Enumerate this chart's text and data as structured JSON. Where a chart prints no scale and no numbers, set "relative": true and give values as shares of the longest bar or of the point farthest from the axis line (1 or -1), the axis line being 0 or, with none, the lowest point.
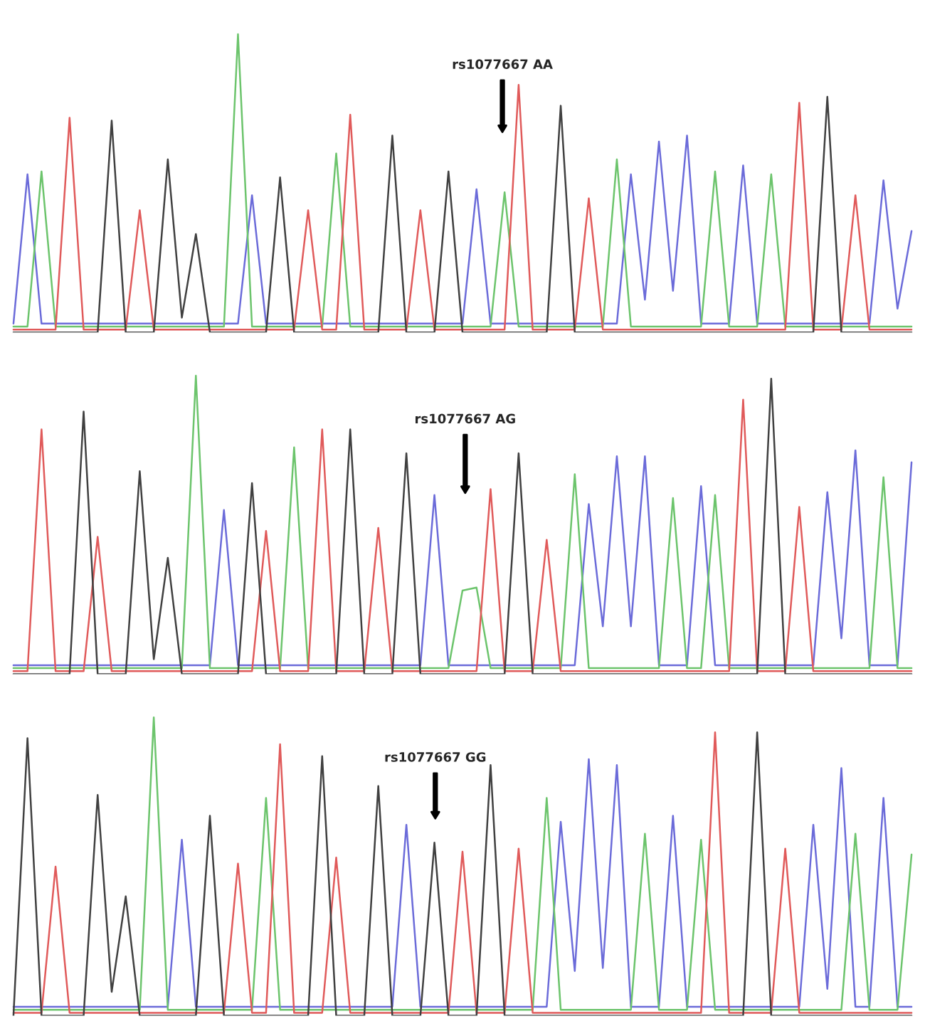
{
  "chart_data": [
    {
      "type": "line",
      "relative": true,
      "line_style": "solid",
      "categories": [
        null,
        null,
        null,
        null,
        null,
        null,
        null,
        null,
        null,
        null,
        null,
        null,
        null,
        null,
        null,
        null,
        null,
        null,
        null,
        null,
        null,
        null,
        null,
        null,
        null,
        null,
        null,
        null,
        null,
        null,
        null,
        null,
        null,
        null,
        null,
        null,
        null,
        null,
        null,
        null,
        null,
        null,
        null,
        null,
        null,
        null,
        null,
        null,
        null,
        null,
        null,
        null,
        null,
        null,
        null,
        null,
        null,
        null,
        null,
        null,
        null,
        null,
        null,
        null,
        null
      ],
      "annotations": [
        "rs1077667 AA"
      ],
      "series": [
        {
          "color": "#6b6bd9",
          "values": [
            0.03,
            0.53,
            0.03,
            0.03,
            0.03,
            0.03,
            0.03,
            0.03,
            0.03,
            0.03,
            0.03,
            0.03,
            0.03,
            0.03,
            0.03,
            0.03,
            0.03,
            0.46,
            0.03,
            0.03,
            0.03,
            0.03,
            0.03,
            0.03,
            0.03,
            0.03,
            0.03,
            0.03,
            0.03,
            0.03,
            0.03,
            0.03,
            0.03,
            0.48,
            0.03,
            0.03,
            0.03,
            0.03,
            0.03,
            0.03,
            0.03,
            0.03,
            0.03,
            0.03,
            0.53,
            0.11,
            0.64,
            0.14,
            0.66,
            0.03,
            0.03,
            0.03,
            0.56,
            0.03,
            0.03,
            0.03,
            0.03,
            0.03,
            0.03,
            0.03,
            0.03,
            0.03,
            0.51,
            0.08,
            0.34
          ]
        },
        {
          "color": "#6cc46c",
          "values": [
            0.02,
            0.02,
            0.54,
            0.02,
            0.02,
            0.02,
            0.02,
            0.02,
            0.02,
            0.02,
            0.02,
            0.02,
            0.02,
            0.02,
            0.02,
            0.02,
            1.0,
            0.02,
            0.02,
            0.02,
            0.02,
            0.02,
            0.02,
            0.6,
            0.02,
            0.02,
            0.02,
            0.02,
            0.02,
            0.02,
            0.02,
            0.02,
            0.02,
            0.02,
            0.02,
            0.47,
            0.02,
            0.02,
            0.02,
            0.02,
            0.02,
            0.02,
            0.02,
            0.58,
            0.02,
            0.02,
            0.02,
            0.02,
            0.02,
            0.02,
            0.54,
            0.02,
            0.02,
            0.02,
            0.53,
            0.02,
            0.02,
            0.02,
            0.02,
            0.02,
            0.02,
            0.02,
            0.02,
            0.02,
            0.02
          ]
        },
        {
          "color": "#e05a5a",
          "values": [
            0.01,
            0.01,
            0.01,
            0.01,
            0.72,
            0.01,
            0.01,
            0.01,
            0.01,
            0.41,
            0.01,
            0.01,
            0.01,
            0.01,
            0.01,
            0.01,
            0.01,
            0.01,
            0.01,
            0.01,
            0.01,
            0.41,
            0.01,
            0.01,
            0.73,
            0.01,
            0.01,
            0.01,
            0.01,
            0.41,
            0.01,
            0.01,
            0.01,
            0.01,
            0.01,
            0.01,
            0.83,
            0.01,
            0.01,
            0.01,
            0.01,
            0.45,
            0.01,
            0.01,
            0.01,
            0.01,
            0.01,
            0.01,
            0.01,
            0.01,
            0.01,
            0.01,
            0.01,
            0.01,
            0.01,
            0.01,
            0.77,
            0.01,
            0.01,
            0.01,
            0.46,
            0.01,
            0.01,
            0.01,
            0.01
          ]
        },
        {
          "color": "#404040",
          "values": [
            0,
            0,
            0,
            0,
            0,
            0,
            0,
            0.71,
            0,
            0,
            0,
            0.58,
            0.05,
            0.33,
            0,
            0,
            0,
            0,
            0,
            0.52,
            0,
            0,
            0,
            0,
            0,
            0,
            0,
            0.66,
            0,
            0,
            0,
            0.54,
            0,
            0,
            0,
            0,
            0,
            0,
            0,
            0.76,
            0,
            0,
            0,
            0,
            0,
            0,
            0,
            0,
            0,
            0,
            0,
            0,
            0,
            0,
            0,
            0,
            0,
            0,
            0.79,
            0,
            0,
            0,
            0,
            0,
            0
          ]
        }
      ]
    },
    {
      "type": "line",
      "relative": true,
      "line_style": "solid",
      "categories": [
        null,
        null,
        null,
        null,
        null,
        null,
        null,
        null,
        null,
        null,
        null,
        null,
        null,
        null,
        null,
        null,
        null,
        null,
        null,
        null,
        null,
        null,
        null,
        null,
        null,
        null,
        null,
        null,
        null,
        null,
        null,
        null,
        null,
        null,
        null,
        null,
        null,
        null,
        null,
        null,
        null,
        null,
        null,
        null,
        null,
        null,
        null,
        null,
        null,
        null,
        null,
        null,
        null,
        null,
        null,
        null,
        null,
        null,
        null,
        null,
        null,
        null,
        null,
        null,
        null
      ],
      "annotations": [
        "rs1077667 AG"
      ],
      "series": [
        {
          "color": "#6b6bd9",
          "values": [
            0.03,
            0.03,
            0.03,
            0.03,
            0.03,
            0.03,
            0.03,
            0.03,
            0.03,
            0.03,
            0.03,
            0.03,
            0.03,
            0.03,
            0.03,
            0.55,
            0.03,
            0.03,
            0.03,
            0.03,
            0.03,
            0.03,
            0.03,
            0.03,
            0.03,
            0.03,
            0.03,
            0.03,
            0.03,
            0.03,
            0.6,
            0.03,
            0.03,
            0.03,
            0.03,
            0.03,
            0.03,
            0.03,
            0.03,
            0.03,
            0.03,
            0.57,
            0.16,
            0.73,
            0.16,
            0.73,
            0.03,
            0.03,
            0.03,
            0.63,
            0.03,
            0.03,
            0.03,
            0.03,
            0.03,
            0.03,
            0.03,
            0.03,
            0.61,
            0.12,
            0.75,
            0.03,
            0.03,
            0.03,
            0.71
          ]
        },
        {
          "color": "#6cc46c",
          "values": [
            0.02,
            0.02,
            0.02,
            0.02,
            0.02,
            0.02,
            0.02,
            0.02,
            0.02,
            0.02,
            0.02,
            0.02,
            0.02,
            1.0,
            0.02,
            0.02,
            0.02,
            0.02,
            0.02,
            0.02,
            0.76,
            0.02,
            0.02,
            0.02,
            0.02,
            0.02,
            0.02,
            0.02,
            0.02,
            0.02,
            0.02,
            0.02,
            0.28,
            0.29,
            0.02,
            0.02,
            0.02,
            0.02,
            0.02,
            0.02,
            0.67,
            0.02,
            0.02,
            0.02,
            0.02,
            0.02,
            0.02,
            0.59,
            0.02,
            0.02,
            0.6,
            0.02,
            0.02,
            0.02,
            0.02,
            0.02,
            0.02,
            0.02,
            0.02,
            0.02,
            0.02,
            0.02,
            0.66,
            0.02,
            0.02
          ]
        },
        {
          "color": "#e05a5a",
          "values": [
            0.01,
            0.01,
            0.82,
            0.01,
            0.01,
            0.01,
            0.46,
            0.01,
            0.01,
            0.01,
            0.01,
            0.01,
            0.01,
            0.01,
            0.01,
            0.01,
            0.01,
            0.01,
            0.48,
            0.01,
            0.01,
            0.01,
            0.82,
            0.01,
            0.01,
            0.01,
            0.49,
            0.01,
            0.01,
            0.01,
            0.01,
            0.01,
            0.01,
            0.01,
            0.62,
            0.01,
            0.01,
            0.01,
            0.45,
            0.01,
            0.01,
            0.01,
            0.01,
            0.01,
            0.01,
            0.01,
            0.01,
            0.01,
            0.01,
            0.01,
            0.01,
            0.01,
            0.92,
            0.01,
            0.01,
            0.01,
            0.56,
            0.01,
            0.01,
            0.01,
            0.01,
            0.01,
            0.01,
            0.01,
            0.01
          ]
        },
        {
          "color": "#404040",
          "values": [
            0,
            0,
            0,
            0,
            0,
            0.88,
            0,
            0,
            0,
            0.68,
            0.05,
            0.39,
            0,
            0,
            0,
            0,
            0,
            0.64,
            0,
            0,
            0,
            0,
            0,
            0,
            0.82,
            0,
            0,
            0,
            0.74,
            0,
            0,
            0,
            0,
            0,
            0,
            0,
            0.74,
            0,
            0,
            0,
            0,
            0,
            0,
            0,
            0,
            0,
            0,
            0,
            0,
            0,
            0,
            0,
            0,
            0,
            0.99,
            0,
            0,
            0,
            0,
            0,
            0,
            0,
            0,
            0,
            0
          ]
        }
      ]
    },
    {
      "type": "line",
      "relative": true,
      "line_style": "solid",
      "categories": [
        null,
        null,
        null,
        null,
        null,
        null,
        null,
        null,
        null,
        null,
        null,
        null,
        null,
        null,
        null,
        null,
        null,
        null,
        null,
        null,
        null,
        null,
        null,
        null,
        null,
        null,
        null,
        null,
        null,
        null,
        null,
        null,
        null,
        null,
        null,
        null,
        null,
        null,
        null,
        null,
        null,
        null,
        null,
        null,
        null,
        null,
        null,
        null,
        null,
        null,
        null,
        null,
        null,
        null,
        null,
        null,
        null,
        null,
        null,
        null,
        null,
        null,
        null,
        null,
        null
      ],
      "annotations": [
        "rs1077667 GG"
      ],
      "series": [
        {
          "color": "#6b6bd9",
          "values": [
            0.03,
            0.03,
            0.03,
            0.03,
            0.03,
            0.03,
            0.03,
            0.03,
            0.03,
            0.03,
            0.03,
            0.03,
            0.59,
            0.03,
            0.03,
            0.03,
            0.03,
            0.03,
            0.03,
            0.03,
            0.03,
            0.03,
            0.03,
            0.03,
            0.03,
            0.03,
            0.03,
            0.03,
            0.64,
            0.03,
            0.03,
            0.03,
            0.03,
            0.03,
            0.03,
            0.03,
            0.03,
            0.03,
            0.03,
            0.65,
            0.15,
            0.86,
            0.16,
            0.84,
            0.03,
            0.03,
            0.03,
            0.67,
            0.03,
            0.03,
            0.03,
            0.03,
            0.03,
            0.03,
            0.03,
            0.03,
            0.03,
            0.64,
            0.09,
            0.83,
            0.03,
            0.03,
            0.73,
            0.03,
            0.03
          ]
        },
        {
          "color": "#6cc46c",
          "values": [
            0.02,
            0.02,
            0.02,
            0.02,
            0.02,
            0.02,
            0.02,
            0.02,
            0.02,
            0.02,
            1.0,
            0.02,
            0.02,
            0.02,
            0.02,
            0.02,
            0.02,
            0.02,
            0.73,
            0.02,
            0.02,
            0.02,
            0.02,
            0.02,
            0.02,
            0.02,
            0.02,
            0.02,
            0.02,
            0.02,
            0.02,
            0.02,
            0.02,
            0.02,
            0.02,
            0.02,
            0.02,
            0.02,
            0.73,
            0.02,
            0.02,
            0.02,
            0.02,
            0.02,
            0.02,
            0.61,
            0.02,
            0.02,
            0.02,
            0.59,
            0.02,
            0.02,
            0.02,
            0.02,
            0.02,
            0.02,
            0.02,
            0.02,
            0.02,
            0.02,
            0.61,
            0.02,
            0.02,
            0.02,
            0.54
          ]
        },
        {
          "color": "#e05a5a",
          "values": [
            0.01,
            0.01,
            0.01,
            0.5,
            0.01,
            0.01,
            0.01,
            0.01,
            0.01,
            0.01,
            0.01,
            0.01,
            0.01,
            0.01,
            0.01,
            0.01,
            0.51,
            0.01,
            0.01,
            0.91,
            0.01,
            0.01,
            0.01,
            0.53,
            0.01,
            0.01,
            0.01,
            0.01,
            0.01,
            0.01,
            0.01,
            0.01,
            0.55,
            0.01,
            0.01,
            0.01,
            0.56,
            0.01,
            0.01,
            0.01,
            0.01,
            0.01,
            0.01,
            0.01,
            0.01,
            0.01,
            0.01,
            0.01,
            0.01,
            0.01,
            0.95,
            0.01,
            0.01,
            0.01,
            0.01,
            0.56,
            0.01,
            0.01,
            0.01,
            0.01,
            0.01,
            0.01,
            0.01,
            0.01,
            0.01
          ]
        },
        {
          "color": "#404040",
          "values": [
            0,
            0.93,
            0,
            0,
            0,
            0,
            0.74,
            0.08,
            0.4,
            0,
            0,
            0,
            0,
            0,
            0.67,
            0,
            0,
            0,
            0,
            0,
            0,
            0,
            0.87,
            0,
            0,
            0,
            0.77,
            0,
            0,
            0,
            0.58,
            0,
            0,
            0,
            0.84,
            0,
            0,
            0,
            0,
            0,
            0,
            0,
            0,
            0,
            0,
            0,
            0,
            0,
            0,
            0,
            0,
            0,
            0,
            0.95,
            0,
            0,
            0,
            0,
            0,
            0,
            0,
            0,
            0,
            0,
            0
          ]
        }
      ]
    }
  ]
}
